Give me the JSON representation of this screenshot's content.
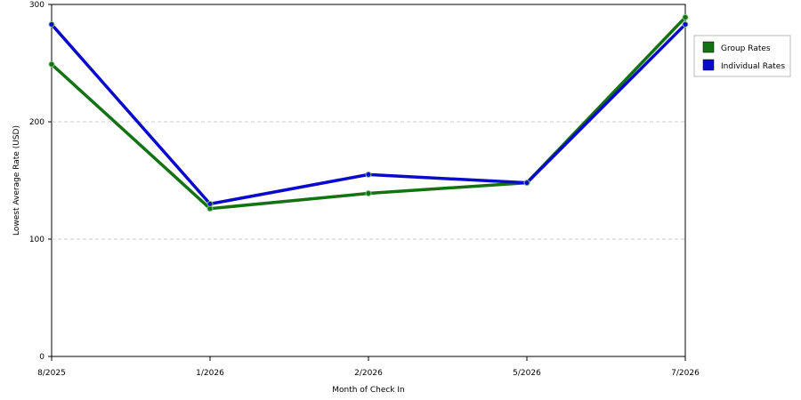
{
  "chart_data": {
    "type": "line",
    "x_label": "Month of Check In",
    "y_label": "Lowest Average Rate (USD)",
    "categories": [
      "8/2025",
      "1/2026",
      "2/2026",
      "5/2026",
      "7/2026"
    ],
    "series": [
      {
        "name": "Group Rates",
        "color": "#137313",
        "values": [
          249,
          126,
          139,
          148,
          289
        ]
      },
      {
        "name": "Individual Rates",
        "color": "#0a0acc",
        "values": [
          283,
          130,
          155,
          148,
          283
        ]
      }
    ],
    "ylim": [
      0,
      300
    ],
    "yticks": [
      0,
      100,
      200,
      300
    ],
    "grid": true,
    "legend": "right"
  }
}
